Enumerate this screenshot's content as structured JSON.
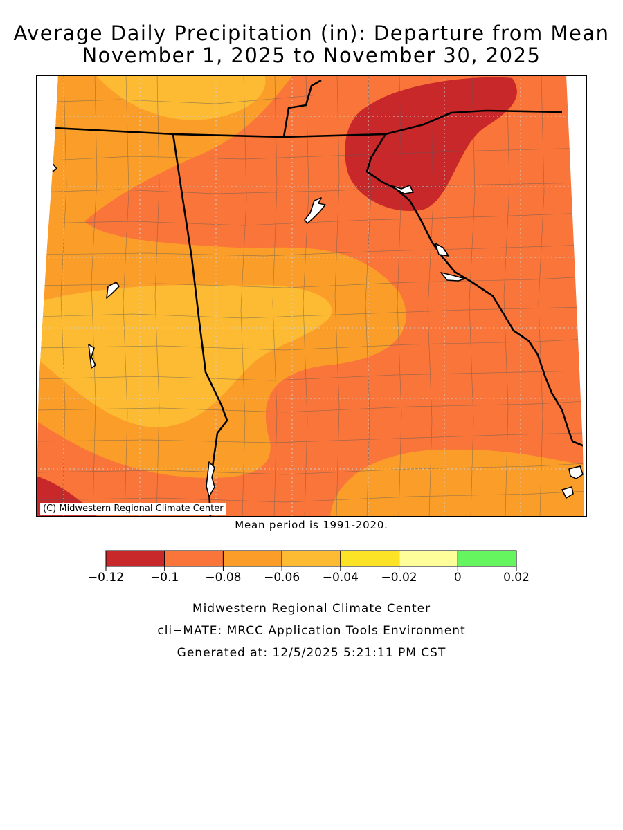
{
  "title": {
    "line1": "Average Daily Precipitation (in): Departure from Mean",
    "line2": "November 1, 2025 to November 30, 2025"
  },
  "map": {
    "copyright": "(C) Midwestern Regional Climate Center",
    "mean_note": "Mean period is 1991-2020."
  },
  "legend": {
    "bins": [
      {
        "from": -0.12,
        "to": -0.1,
        "color": "#c9282b"
      },
      {
        "from": -0.1,
        "to": -0.08,
        "color": "#fa7539"
      },
      {
        "from": -0.08,
        "to": -0.06,
        "color": "#fb9e29"
      },
      {
        "from": -0.06,
        "to": -0.04,
        "color": "#fcbb32"
      },
      {
        "from": -0.04,
        "to": -0.02,
        "color": "#fde325"
      },
      {
        "from": -0.02,
        "to": 0,
        "color": "#fefe9b"
      },
      {
        "from": 0,
        "to": 0.02,
        "color": "#65f55f"
      }
    ],
    "tick_labels": [
      "−0.12",
      "−0.1",
      "−0.08",
      "−0.06",
      "−0.04",
      "−0.02",
      "0",
      "0.02"
    ]
  },
  "footer": {
    "line1": "Midwestern Regional Climate Center",
    "line2": "cli−MATE: MRCC Application Tools Environment",
    "line3": "Generated at: 12/5/2025 5:21:11 PM CST"
  }
}
